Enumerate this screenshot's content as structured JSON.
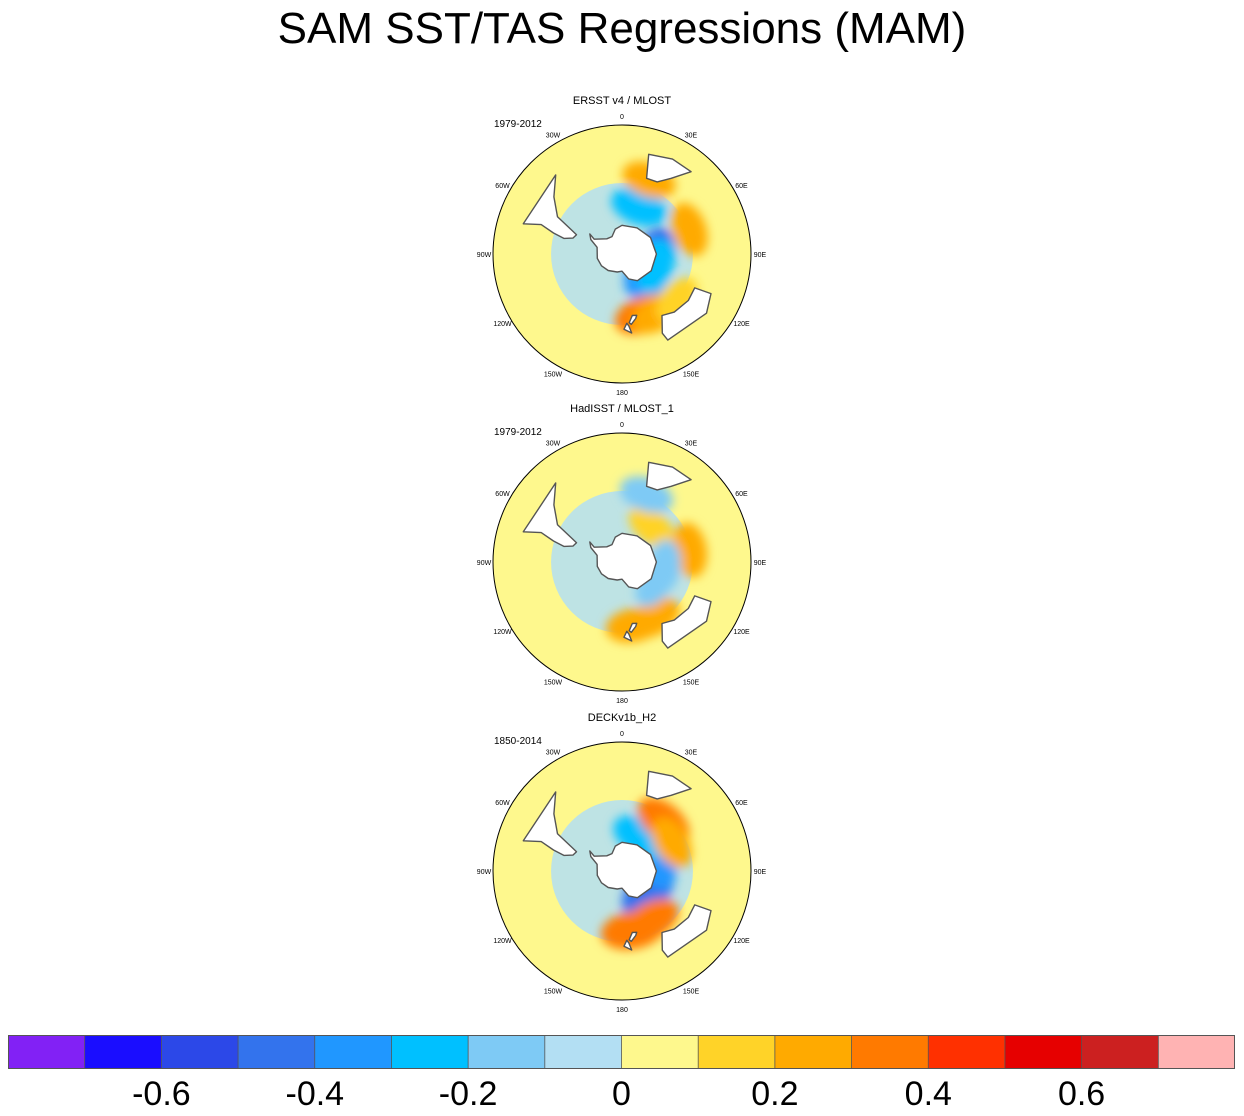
{
  "chart_data": {
    "type": "heatmap",
    "title": "SAM SST/TAS Regressions (MAM)",
    "projection": "south-polar-stereographic",
    "panels": [
      {
        "title": "ERSST v4 / MLOST",
        "period": "1979-2012",
        "features": [
          {
            "lon": 110,
            "lat": -68,
            "value": -0.55
          },
          {
            "lon": 118,
            "lat": -70,
            "value": -0.4
          },
          {
            "lon": 110,
            "lat": -65,
            "value": -0.25
          },
          {
            "lon": 20,
            "lat": -55,
            "value": -0.25
          },
          {
            "lon": 160,
            "lat": -45,
            "value": 0.3
          },
          {
            "lon": 150,
            "lat": -42,
            "value": 0.2
          },
          {
            "lon": 70,
            "lat": -40,
            "value": 0.2
          },
          {
            "lon": 20,
            "lat": -35,
            "value": 0.2
          },
          {
            "lon": 130,
            "lat": -40,
            "value": 0.15
          }
        ]
      },
      {
        "title": "HadISST / MLOST_1",
        "period": "1979-2012",
        "features": [
          {
            "lon": 150,
            "lat": -45,
            "value": 0.2
          },
          {
            "lon": 170,
            "lat": -45,
            "value": 0.2
          },
          {
            "lon": 80,
            "lat": -42,
            "value": 0.2
          },
          {
            "lon": 40,
            "lat": -58,
            "value": 0.15
          },
          {
            "lon": 120,
            "lat": -63,
            "value": -0.2
          },
          {
            "lon": 95,
            "lat": -60,
            "value": -0.15
          },
          {
            "lon": 20,
            "lat": -40,
            "value": -0.2
          }
        ]
      },
      {
        "title": "DECKv1b_H2",
        "period": "1850-2014",
        "features": [
          {
            "lon": 110,
            "lat": -68,
            "value": -0.55
          },
          {
            "lon": 125,
            "lat": -68,
            "value": -0.45
          },
          {
            "lon": 70,
            "lat": -65,
            "value": -0.35
          },
          {
            "lon": 30,
            "lat": -63,
            "value": -0.3
          },
          {
            "lon": 170,
            "lat": -48,
            "value": 0.35
          },
          {
            "lon": 150,
            "lat": -50,
            "value": 0.3
          },
          {
            "lon": 40,
            "lat": -45,
            "value": 0.3
          },
          {
            "lon": 60,
            "lat": -50,
            "value": 0.2
          }
        ]
      }
    ],
    "map_labels": {
      "top": "0",
      "bottom": "180",
      "left_side": [
        "30W",
        "60W",
        "90W",
        "120W",
        "150W"
      ],
      "right_side": [
        "30E",
        "60E",
        "90E",
        "120E",
        "150E"
      ]
    },
    "colorbar": {
      "colors": [
        "#8221f5",
        "#1a0dff",
        "#2c48e8",
        "#3373ed",
        "#2097ff",
        "#00c0ff",
        "#7ecaf5",
        "#b3dff3",
        "#fef88d",
        "#ffd328",
        "#ffaa00",
        "#ff7a00",
        "#ff3000",
        "#e60000",
        "#cc2020",
        "#ffb3b3"
      ],
      "boundaries": [
        -0.7,
        -0.6,
        -0.5,
        -0.4,
        -0.3,
        -0.2,
        -0.1,
        0,
        0.1,
        0.2,
        0.3,
        0.4,
        0.5,
        0.6,
        0.7
      ],
      "labels": [
        "-0.6",
        "-0.4",
        "-0.2",
        "0",
        "0.2",
        "0.4",
        "0.6"
      ],
      "label_values": [
        -0.6,
        -0.4,
        -0.2,
        0,
        0.2,
        0.4,
        0.6
      ]
    }
  }
}
